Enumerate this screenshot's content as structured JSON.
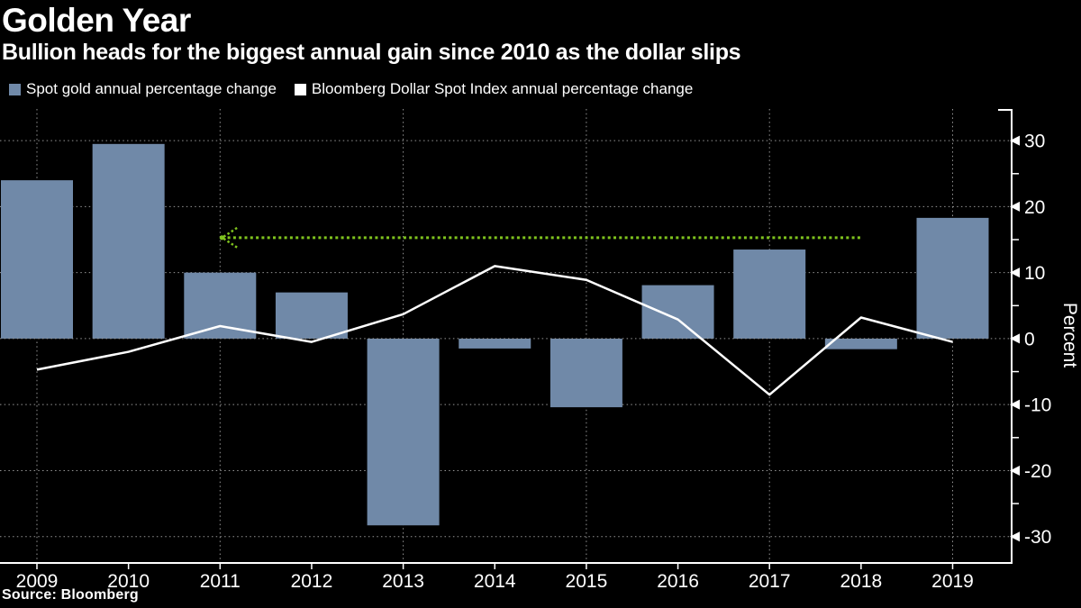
{
  "header": {
    "title": "Golden Year",
    "subtitle": "Bullion heads for the biggest annual gain since 2010 as the dollar slips"
  },
  "footer": {
    "source": "Source: Bloomberg"
  },
  "colors": {
    "background": "#000000",
    "bar": "#7089a8",
    "line": "#ffffff",
    "annotation_green": "#7fc31e",
    "gridline": "#969696",
    "axis": "#ffffff"
  },
  "chart_data": {
    "type": "bar",
    "title": "Golden Year",
    "subtitle": "Bullion heads for the biggest annual gain since 2010 as the dollar slips",
    "categories": [
      2009,
      2010,
      2011,
      2012,
      2013,
      2014,
      2015,
      2016,
      2017,
      2018,
      2019
    ],
    "series": [
      {
        "name": "Spot gold annual percentage change",
        "type": "bar",
        "color": "#7089a8",
        "values": [
          24,
          29.5,
          10,
          7,
          -28.3,
          -1.5,
          -10.4,
          8.1,
          13.5,
          -1.6,
          18.3
        ]
      },
      {
        "name": "Bloomberg Dollar Spot Index annual percentage change",
        "type": "line",
        "color": "#ffffff",
        "values": [
          -4.7,
          -2,
          1.9,
          -0.5,
          3.7,
          11,
          8.9,
          2.9,
          -8.5,
          3.2,
          -0.5
        ]
      }
    ],
    "annotation": {
      "type": "dotted-line-arrow-left",
      "color": "#7fc31e",
      "value": 15.3,
      "from_year": 2011,
      "to_year": 2018
    },
    "xlabel": "",
    "ylabel": "Percent",
    "ylim": [
      -34,
      34.8
    ],
    "yticks_major": [
      30,
      20,
      10,
      0,
      -10,
      -20,
      -30
    ],
    "yticks_minor": [
      25,
      15,
      5,
      -5,
      -15,
      -25
    ],
    "grid_vertical_years": [
      2009,
      2011,
      2013,
      2015,
      2017,
      2019
    ],
    "grid": true,
    "legend_position": "top"
  }
}
